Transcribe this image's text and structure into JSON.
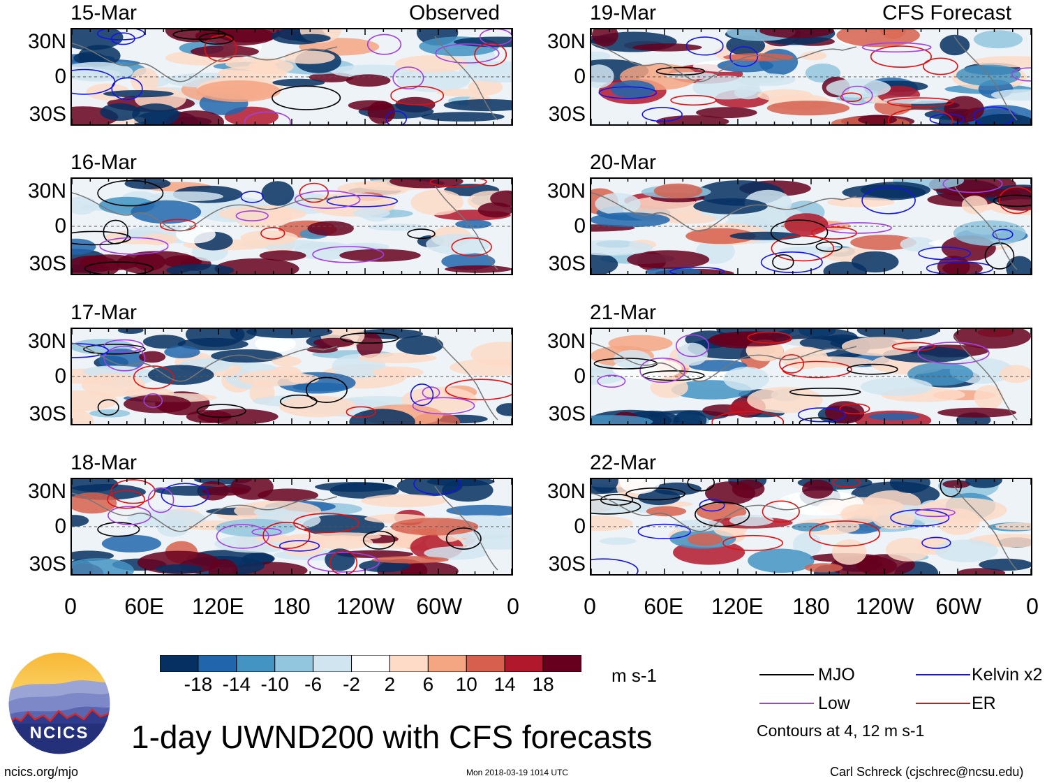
{
  "chart_data": {
    "type": "heatmap",
    "title": "1-day UWND200 with CFS forecasts",
    "variable": "200 hPa zonal wind anomaly",
    "units": "m s-1",
    "panels": [
      {
        "date": "15-Mar",
        "column": "Observed"
      },
      {
        "date": "16-Mar",
        "column": "Observed"
      },
      {
        "date": "17-Mar",
        "column": "Observed"
      },
      {
        "date": "18-Mar",
        "column": "Observed"
      },
      {
        "date": "19-Mar",
        "column": "CFS Forecast"
      },
      {
        "date": "20-Mar",
        "column": "CFS Forecast"
      },
      {
        "date": "21-Mar",
        "column": "CFS Forecast"
      },
      {
        "date": "22-Mar",
        "column": "CFS Forecast"
      }
    ],
    "column_titles": [
      "Observed",
      "CFS Forecast"
    ],
    "x_ticks": [
      "0",
      "60E",
      "120E",
      "180",
      "120W",
      "60W",
      "0"
    ],
    "y_ticks": [
      "30N",
      "0",
      "30S"
    ],
    "colorbar": {
      "labels": [
        "-18",
        "-14",
        "-10",
        "-6",
        "-2",
        "2",
        "6",
        "10",
        "14",
        "18"
      ],
      "colors": [
        "#053061",
        "#2166ac",
        "#4393c3",
        "#92c5de",
        "#d1e5f0",
        "#ffffff",
        "#fddbc7",
        "#f4a582",
        "#d6604d",
        "#b2182b",
        "#67001f"
      ],
      "units": "m s-1"
    },
    "legend": [
      {
        "label": "MJO",
        "color": "#000000"
      },
      {
        "label": "Kelvin x2",
        "color": "#1414e6"
      },
      {
        "label": "Low",
        "color": "#a040e0"
      },
      {
        "label": "ER",
        "color": "#e01010"
      }
    ],
    "contour_note": "Contours at 4, 12 m s-1"
  },
  "footer": {
    "logo_text": "NCICS",
    "url": "ncics.org/mjo",
    "timestamp": "Mon 2018-03-19 1014 UTC",
    "credit": "Carl Schreck (cjschrec@ncsu.edu)"
  }
}
